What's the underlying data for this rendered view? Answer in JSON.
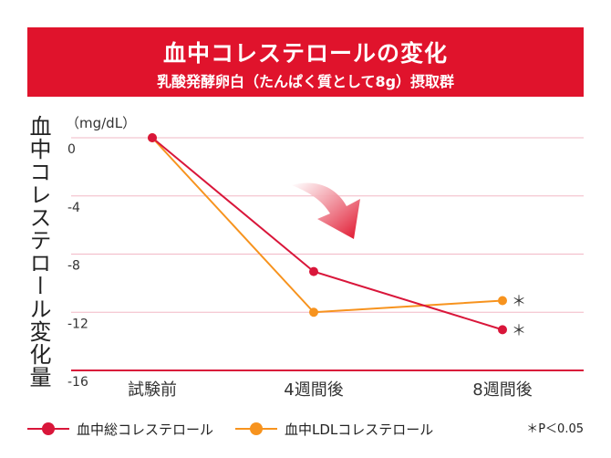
{
  "header": {
    "title": "血中コレステロールの変化",
    "subtitle": "乳酸発酵卵白（たんぱく質として8g）摂取群"
  },
  "colors": {
    "header_bg": "#e0132c",
    "series_total": "#d9163a",
    "series_ldl": "#f7931e",
    "gridline": "#f2b8c6",
    "baseline": "#d9163a"
  },
  "chart_data": {
    "type": "line",
    "ylabel": "血中コレステロール変化量",
    "yunit": "（mg/dL）",
    "ylim": [
      -16,
      0
    ],
    "yticks": [
      "0",
      "-4",
      "-8",
      "-12",
      "-16"
    ],
    "ytick_values": [
      0,
      -4,
      -8,
      -12,
      -16
    ],
    "categories": [
      "試験前",
      "4週間後",
      "8週間後"
    ],
    "series": [
      {
        "name": "血中総コレステロール",
        "values": [
          0,
          -9.2,
          -13.2
        ],
        "markers": [
          "",
          "",
          "＊"
        ]
      },
      {
        "name": "血中LDLコレステロール",
        "values": [
          0,
          -12.0,
          -11.2
        ],
        "markers": [
          "",
          "",
          "＊"
        ]
      }
    ],
    "note": "＊P＜0.05"
  }
}
